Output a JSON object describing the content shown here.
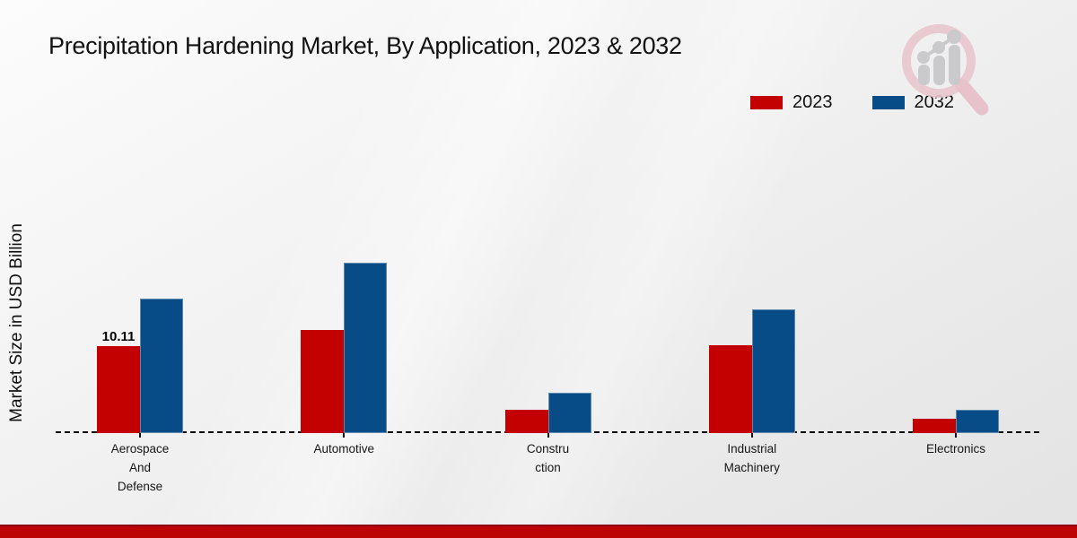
{
  "page": {
    "title": "Precipitation Hardening Market, By Application, 2023 & 2032",
    "colors": {
      "series_2023": "#c40101",
      "series_2032": "#084c87",
      "footer_strip": "#bd0404",
      "footer_strip_edge": "#8e0101",
      "background_top": "#fcfcfc",
      "background_bottom": "#e3e3e3"
    }
  },
  "legend": {
    "items": [
      {
        "label": "2023",
        "color": "#c40101"
      },
      {
        "label": "2032",
        "color": "#084c87"
      }
    ]
  },
  "chart_data": {
    "type": "bar",
    "title": "Precipitation Hardening Market, By Application, 2023 & 2032",
    "ylabel": "Market Size in USD Billion",
    "xlabel": "",
    "ylim": [
      0,
      35
    ],
    "grid": false,
    "baseline_style": "dashed",
    "legend_position": "top-right",
    "categories": [
      "Aerospace\nAnd\nDefense",
      "Automotive",
      "Constru\nction",
      "Industrial\nMachinery",
      "Electronics"
    ],
    "series": [
      {
        "name": "2023",
        "color": "#c40101",
        "values": [
          10.11,
          12.0,
          2.7,
          10.2,
          1.7
        ]
      },
      {
        "name": "2032",
        "color": "#084c87",
        "values": [
          15.6,
          19.8,
          4.7,
          14.4,
          2.7
        ]
      }
    ],
    "value_labels": [
      {
        "series": "2023",
        "category_index": 0,
        "text": "10.11"
      }
    ]
  },
  "watermark": {
    "name": "market-research-magnifier-logo"
  }
}
